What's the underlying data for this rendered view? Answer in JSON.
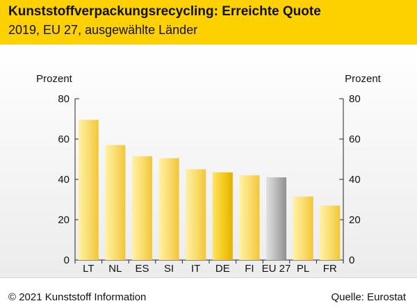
{
  "header": {
    "title": "Kunststoffverpackungsrecycling: Erreichte Quote",
    "subtitle": "2019, EU 27, ausgewählte Länder"
  },
  "footer": {
    "copyright": "© 2021 Kunststoff Information",
    "source": "Quelle: Eurostat"
  },
  "colors": {
    "header": "#fdd000",
    "bar_default": "#f7d24a",
    "bar_highlight_DE": "#f2c200",
    "bar_eu": "#9c9c9c"
  },
  "chart_data": {
    "type": "bar",
    "title": "Kunststoffverpackungsrecycling: Erreichte Quote",
    "subtitle": "2019, EU 27, ausgewählte Länder",
    "ylabel_left": "Prozent",
    "ylabel_right": "Prozent",
    "ylim": [
      0,
      80
    ],
    "yticks": [
      0,
      20,
      40,
      60,
      80
    ],
    "grid": false,
    "categories": [
      "LT",
      "NL",
      "ES",
      "SI",
      "IT",
      "DE",
      "FI",
      "EU 27",
      "PL",
      "FR"
    ],
    "values": [
      69.5,
      57,
      51.5,
      50.5,
      45,
      43.5,
      42,
      41,
      31.5,
      27
    ],
    "highlight": {
      "DE": "yellow-dark",
      "EU 27": "gray"
    }
  }
}
